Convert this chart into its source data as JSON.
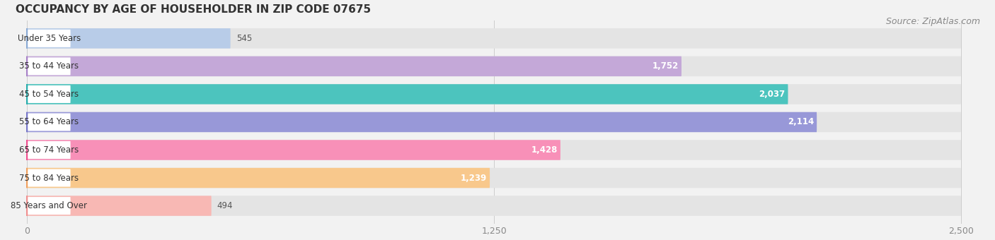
{
  "title": "OCCUPANCY BY AGE OF HOUSEHOLDER IN ZIP CODE 07675",
  "source": "Source: ZipAtlas.com",
  "categories": [
    "Under 35 Years",
    "35 to 44 Years",
    "45 to 54 Years",
    "55 to 64 Years",
    "65 to 74 Years",
    "75 to 84 Years",
    "85 Years and Over"
  ],
  "values": [
    545,
    1752,
    2037,
    2114,
    1428,
    1239,
    494
  ],
  "bar_colors": [
    "#b8cce8",
    "#c4a8d8",
    "#4cc4be",
    "#9898d8",
    "#f890b8",
    "#f8c88c",
    "#f8b8b4"
  ],
  "label_dot_colors": [
    "#8aaad4",
    "#a882c8",
    "#2aacac",
    "#7878c8",
    "#f05090",
    "#f0a060",
    "#f09090"
  ],
  "value_label_inside": [
    false,
    true,
    true,
    true,
    true,
    true,
    false
  ],
  "xlim_max": 2500,
  "xticks": [
    0,
    1250,
    2500
  ],
  "xtick_labels": [
    "0",
    "1,250",
    "2,500"
  ],
  "background_color": "#f2f2f2",
  "bar_bg_color": "#e4e4e4",
  "title_fontsize": 11,
  "source_fontsize": 9,
  "tick_fontsize": 9,
  "cat_fontsize": 8.5,
  "val_fontsize": 8.5,
  "bar_height": 0.72,
  "figsize": [
    14.06,
    3.4
  ],
  "dpi": 100
}
